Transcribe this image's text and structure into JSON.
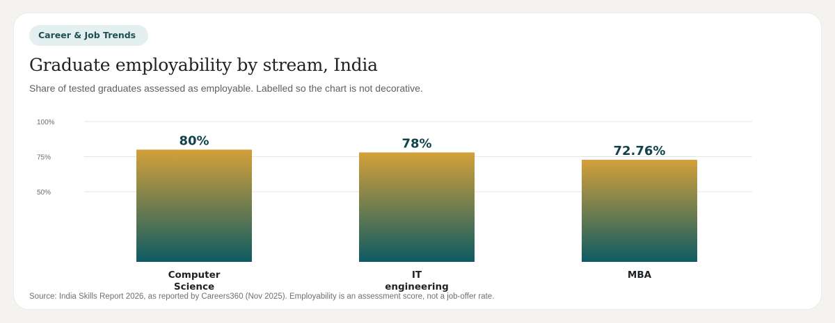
{
  "tag": "Career & Job Trends",
  "title": "Graduate employability by stream, India",
  "subtitle": "Share of tested graduates assessed as employable.  Labelled so the chart is not decorative.",
  "source": "Source: India Skills Report 2026, as reported by Careers360 (Nov 2025).  Employability is an assessment score, not a job-offer rate.",
  "colors": {
    "bar_top": "#d4a03a",
    "bar_bottom": "#0e5b63",
    "value_label": "#12434a",
    "gridline": "#e6e6e3",
    "tick_label": "#666c72"
  },
  "chart_data": {
    "type": "bar",
    "categories": [
      [
        "Computer",
        "Science"
      ],
      [
        "IT",
        "engineering"
      ],
      [
        "MBA"
      ]
    ],
    "values": [
      80,
      78,
      72.76
    ],
    "value_labels": [
      "80%",
      "78%",
      "72.76%"
    ],
    "y_ticks": [
      50,
      75,
      100
    ],
    "y_tick_labels": [
      "50%",
      "75%",
      "100%"
    ],
    "ylim": [
      0,
      100
    ],
    "grid": true,
    "legend": "none"
  }
}
